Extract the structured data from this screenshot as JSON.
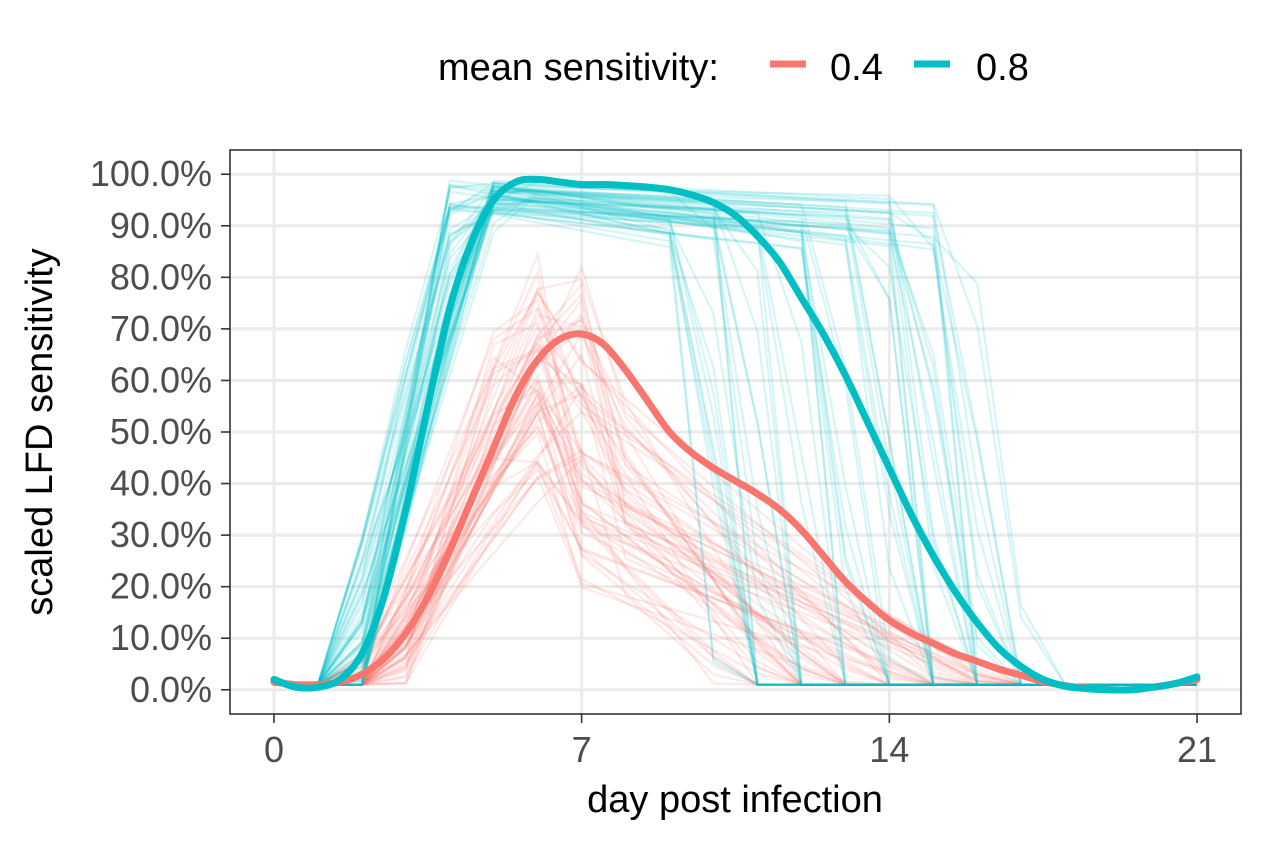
{
  "chart_data": {
    "type": "line",
    "xlabel": "day post infection",
    "ylabel": "scaled LFD sensitivity",
    "xlim": [
      -1,
      22
    ],
    "ylim": [
      -0.047,
      1.047
    ],
    "x_ticks": [
      0,
      7,
      14,
      21
    ],
    "x_tick_labels": [
      "0",
      "7",
      "14",
      "21"
    ],
    "y_ticks": [
      0,
      0.1,
      0.2,
      0.3,
      0.4,
      0.5,
      0.6,
      0.7,
      0.8,
      0.9,
      1.0
    ],
    "y_tick_labels": [
      "0.0%",
      "10.0%",
      "20.0%",
      "30.0%",
      "40.0%",
      "50.0%",
      "60.0%",
      "70.0%",
      "80.0%",
      "90.0%",
      "100.0%"
    ],
    "grid": true,
    "legend": {
      "title": "mean sensitivity:",
      "position": "top",
      "entries": [
        "0.4",
        "0.8"
      ]
    },
    "series": [
      {
        "name": "0.4",
        "color": "#F8766D",
        "x": [
          0,
          0.5,
          1,
          1.5,
          2,
          2.5,
          3,
          3.5,
          4,
          4.5,
          5,
          5.5,
          6,
          6.5,
          7,
          7.5,
          8,
          8.5,
          9,
          9.5,
          10,
          10.5,
          11,
          11.5,
          12,
          12.5,
          13,
          13.5,
          14,
          14.5,
          15,
          15.5,
          16,
          16.5,
          17,
          17.5,
          18,
          18.5,
          19,
          19.5,
          20,
          20.5,
          21
        ],
        "values": [
          0.015,
          0.01,
          0.01,
          0.015,
          0.03,
          0.06,
          0.11,
          0.18,
          0.27,
          0.37,
          0.47,
          0.57,
          0.64,
          0.68,
          0.69,
          0.67,
          0.62,
          0.56,
          0.5,
          0.46,
          0.43,
          0.405,
          0.38,
          0.35,
          0.31,
          0.26,
          0.21,
          0.17,
          0.135,
          0.11,
          0.09,
          0.07,
          0.055,
          0.04,
          0.028,
          0.016,
          0.008,
          0.003,
          0.0,
          0.0,
          0.005,
          0.012,
          0.02
        ]
      },
      {
        "name": "0.8",
        "color": "#00BFC4",
        "x": [
          0,
          0.5,
          1,
          1.5,
          2,
          2.5,
          3,
          3.5,
          4,
          4.5,
          5,
          5.5,
          6,
          6.5,
          7,
          7.5,
          8,
          8.5,
          9,
          9.5,
          10,
          10.5,
          11,
          11.5,
          12,
          12.5,
          13,
          13.5,
          14,
          14.5,
          15,
          15.5,
          16,
          16.5,
          17,
          17.5,
          18,
          18.5,
          19,
          19.5,
          20,
          20.5,
          21
        ],
        "values": [
          0.02,
          0.005,
          0.005,
          0.02,
          0.07,
          0.18,
          0.35,
          0.55,
          0.74,
          0.87,
          0.95,
          0.985,
          0.99,
          0.985,
          0.98,
          0.98,
          0.978,
          0.975,
          0.97,
          0.96,
          0.945,
          0.92,
          0.88,
          0.83,
          0.76,
          0.69,
          0.61,
          0.52,
          0.43,
          0.34,
          0.26,
          0.19,
          0.13,
          0.08,
          0.045,
          0.02,
          0.007,
          0.002,
          0.0,
          0.0,
          0.005,
          0.012,
          0.025
        ]
      }
    ]
  }
}
